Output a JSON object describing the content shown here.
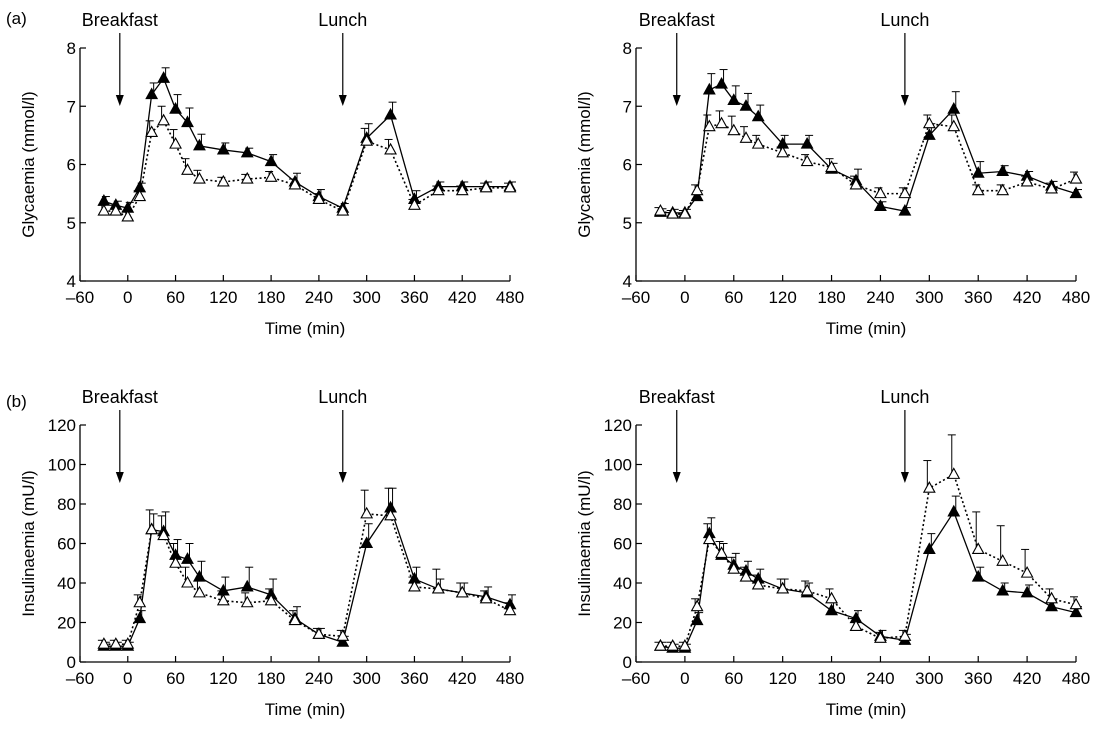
{
  "figure": {
    "panel_labels": [
      "(a)",
      "(b)"
    ]
  },
  "styles": {
    "line_color": "#000000",
    "filled_marker_color": "#000000",
    "open_marker_color": "#ffffff"
  },
  "chart_data": [
    {
      "type": "line",
      "panel": "(a)",
      "panel_label": "(a)",
      "xlabel": "Time (min)",
      "ylabel": "Glycaemia (mmol/l)",
      "xlim": [
        -60,
        480
      ],
      "ylim": [
        4,
        8
      ],
      "xticks": [
        -60,
        0,
        60,
        120,
        180,
        240,
        300,
        360,
        420,
        480
      ],
      "xtick_labels": [
        "–60",
        "0",
        "60",
        "120",
        "180",
        "240",
        "300",
        "360",
        "420",
        "480"
      ],
      "yticks": [
        4,
        5,
        6,
        7,
        8
      ],
      "ytick_labels": [
        "4",
        "5",
        "6",
        "7",
        "8"
      ],
      "grid": false,
      "annotations": [
        {
          "text": "Breakfast",
          "x": -10
        },
        {
          "text": "Lunch",
          "x": 270
        }
      ],
      "x": [
        -30,
        -15,
        0,
        15,
        30,
        45,
        60,
        75,
        90,
        120,
        150,
        180,
        210,
        240,
        270,
        300,
        330,
        360,
        390,
        420,
        450,
        480
      ],
      "series": [
        {
          "marker": "filled-triangle",
          "line": "solid",
          "values": [
            5.37,
            5.3,
            5.25,
            5.6,
            7.2,
            7.48,
            6.95,
            6.72,
            6.32,
            6.25,
            6.2,
            6.05,
            5.7,
            5.45,
            5.25,
            6.45,
            6.85,
            5.4,
            5.62,
            5.62,
            5.62,
            5.62
          ],
          "errors": [
            0.08,
            0.07,
            0.1,
            0.08,
            0.2,
            0.18,
            0.25,
            0.25,
            0.2,
            0.12,
            0.08,
            0.12,
            0.15,
            0.12,
            0.08,
            0.25,
            0.22,
            0.15,
            0.08,
            0.08,
            0.08,
            0.08
          ]
        },
        {
          "marker": "open-triangle",
          "line": "dotted",
          "values": [
            5.2,
            5.2,
            5.1,
            5.45,
            6.55,
            6.75,
            6.35,
            5.9,
            5.75,
            5.7,
            5.75,
            5.78,
            5.65,
            5.4,
            5.2,
            6.4,
            6.25,
            5.3,
            5.55,
            5.55,
            5.6,
            5.6
          ],
          "errors": [
            0.1,
            0.1,
            0.1,
            0.1,
            0.2,
            0.25,
            0.25,
            0.2,
            0.15,
            0.08,
            0.08,
            0.1,
            0.1,
            0.1,
            0.08,
            0.22,
            0.18,
            0.1,
            0.08,
            0.08,
            0.08,
            0.08
          ]
        }
      ]
    },
    {
      "type": "line",
      "panel": "(a) right",
      "panel_label": "",
      "xlabel": "Time (min)",
      "ylabel": "Glycaemia (mmol/l)",
      "xlim": [
        -60,
        480
      ],
      "ylim": [
        4,
        8
      ],
      "xticks": [
        -60,
        0,
        60,
        120,
        180,
        240,
        300,
        360,
        420,
        480
      ],
      "xtick_labels": [
        "–60",
        "0",
        "60",
        "120",
        "180",
        "240",
        "300",
        "360",
        "420",
        "480"
      ],
      "yticks": [
        4,
        5,
        6,
        7,
        8
      ],
      "ytick_labels": [
        "4",
        "5",
        "6",
        "7",
        "8"
      ],
      "grid": false,
      "annotations": [
        {
          "text": "Breakfast",
          "x": -10
        },
        {
          "text": "Lunch",
          "x": 270
        }
      ],
      "x": [
        -30,
        -15,
        0,
        15,
        30,
        45,
        60,
        75,
        90,
        120,
        150,
        180,
        210,
        240,
        270,
        300,
        330,
        360,
        390,
        420,
        450,
        480
      ],
      "series": [
        {
          "marker": "filled-triangle",
          "line": "solid",
          "values": [
            5.18,
            5.17,
            5.17,
            5.45,
            7.28,
            7.38,
            7.1,
            7.0,
            6.82,
            6.35,
            6.35,
            5.92,
            5.72,
            5.28,
            5.2,
            6.5,
            6.95,
            5.85,
            5.88,
            5.8,
            5.63,
            5.5
          ],
          "errors": [
            0.06,
            0.06,
            0.06,
            0.1,
            0.28,
            0.25,
            0.25,
            0.22,
            0.2,
            0.15,
            0.15,
            0.1,
            0.2,
            0.08,
            0.06,
            0.2,
            0.3,
            0.2,
            0.1,
            0.08,
            0.08,
            0.07
          ]
        },
        {
          "marker": "open-triangle",
          "line": "dotted",
          "values": [
            5.2,
            5.15,
            5.15,
            5.55,
            6.65,
            6.7,
            6.58,
            6.45,
            6.35,
            6.2,
            6.05,
            5.95,
            5.65,
            5.5,
            5.5,
            6.7,
            6.65,
            5.55,
            5.55,
            5.7,
            5.58,
            5.75
          ],
          "errors": [
            0.06,
            0.06,
            0.06,
            0.1,
            0.2,
            0.22,
            0.25,
            0.2,
            0.15,
            0.1,
            0.12,
            0.15,
            0.15,
            0.1,
            0.1,
            0.15,
            0.2,
            0.1,
            0.1,
            0.1,
            0.1,
            0.12
          ]
        }
      ]
    },
    {
      "type": "line",
      "panel": "(b)",
      "panel_label": "(b)",
      "xlabel": "Time (min)",
      "ylabel": "Insulinaemia (mU/l)",
      "xlim": [
        -60,
        480
      ],
      "ylim": [
        0,
        120
      ],
      "xticks": [
        -60,
        0,
        60,
        120,
        180,
        240,
        300,
        360,
        420,
        480
      ],
      "xtick_labels": [
        "–60",
        "0",
        "60",
        "120",
        "180",
        "240",
        "300",
        "360",
        "420",
        "480"
      ],
      "yticks": [
        0,
        20,
        40,
        60,
        80,
        100,
        120
      ],
      "ytick_labels": [
        "0",
        "20",
        "40",
        "60",
        "80",
        "100",
        "120"
      ],
      "grid": false,
      "annotations": [
        {
          "text": "Breakfast",
          "x": -10
        },
        {
          "text": "Lunch",
          "x": 270
        }
      ],
      "x": [
        -30,
        -15,
        0,
        15,
        30,
        45,
        60,
        75,
        90,
        120,
        150,
        180,
        210,
        240,
        270,
        300,
        330,
        360,
        390,
        420,
        450,
        480
      ],
      "series": [
        {
          "marker": "filled-triangle",
          "line": "solid",
          "values": [
            8,
            8,
            8,
            22,
            67,
            66,
            54,
            52,
            43,
            36,
            38,
            34,
            22,
            14,
            10,
            60,
            78,
            42,
            37,
            35,
            33,
            29
          ],
          "errors": [
            2,
            2,
            2,
            4,
            8,
            10,
            8,
            8,
            8,
            7,
            10,
            8,
            6,
            3,
            3,
            10,
            10,
            6,
            5,
            5,
            5,
            5
          ]
        },
        {
          "marker": "open-triangle",
          "line": "dotted",
          "values": [
            9,
            9,
            9,
            30,
            67,
            64,
            50,
            40,
            35,
            31,
            30,
            31,
            21,
            14,
            13,
            75,
            74,
            38,
            37,
            35,
            32,
            26
          ],
          "errors": [
            2,
            2,
            2,
            4,
            10,
            10,
            10,
            8,
            6,
            5,
            5,
            6,
            5,
            3,
            3,
            12,
            14,
            5,
            10,
            5,
            4,
            4
          ]
        }
      ]
    },
    {
      "type": "line",
      "panel": "(b) right",
      "panel_label": "",
      "xlabel": "Time (min)",
      "ylabel": "Insulinaemia (mU/l)",
      "xlim": [
        -60,
        480
      ],
      "ylim": [
        0,
        120
      ],
      "xticks": [
        -60,
        0,
        60,
        120,
        180,
        240,
        300,
        360,
        420,
        480
      ],
      "xtick_labels": [
        "–60",
        "0",
        "60",
        "120",
        "180",
        "240",
        "300",
        "360",
        "420",
        "480"
      ],
      "yticks": [
        0,
        20,
        40,
        60,
        80,
        100,
        120
      ],
      "ytick_labels": [
        "0",
        "20",
        "40",
        "60",
        "80",
        "100",
        "120"
      ],
      "grid": false,
      "annotations": [
        {
          "text": "Breakfast",
          "x": -10
        },
        {
          "text": "Lunch",
          "x": 270
        }
      ],
      "x": [
        -30,
        -15,
        0,
        15,
        30,
        45,
        60,
        75,
        90,
        120,
        150,
        180,
        210,
        240,
        270,
        300,
        330,
        360,
        390,
        420,
        450,
        480
      ],
      "series": [
        {
          "marker": "filled-triangle",
          "line": "solid",
          "values": [
            8,
            7,
            7,
            21,
            65,
            54,
            49,
            46,
            42,
            37,
            35,
            26,
            22,
            13,
            11,
            57,
            76,
            43,
            36,
            35,
            28,
            25
          ],
          "errors": [
            2,
            2,
            2,
            4,
            8,
            6,
            6,
            5,
            5,
            5,
            5,
            4,
            4,
            3,
            3,
            8,
            8,
            5,
            4,
            4,
            4,
            3
          ]
        },
        {
          "marker": "open-triangle",
          "line": "dotted",
          "values": [
            8,
            8,
            8,
            28,
            62,
            55,
            47,
            43,
            39,
            37,
            36,
            32,
            18,
            12,
            13,
            88,
            95,
            57,
            51,
            45,
            32,
            29
          ],
          "errors": [
            2,
            2,
            2,
            4,
            8,
            6,
            6,
            5,
            5,
            5,
            5,
            5,
            4,
            3,
            3,
            14,
            20,
            19,
            18,
            12,
            5,
            4
          ]
        }
      ]
    }
  ]
}
